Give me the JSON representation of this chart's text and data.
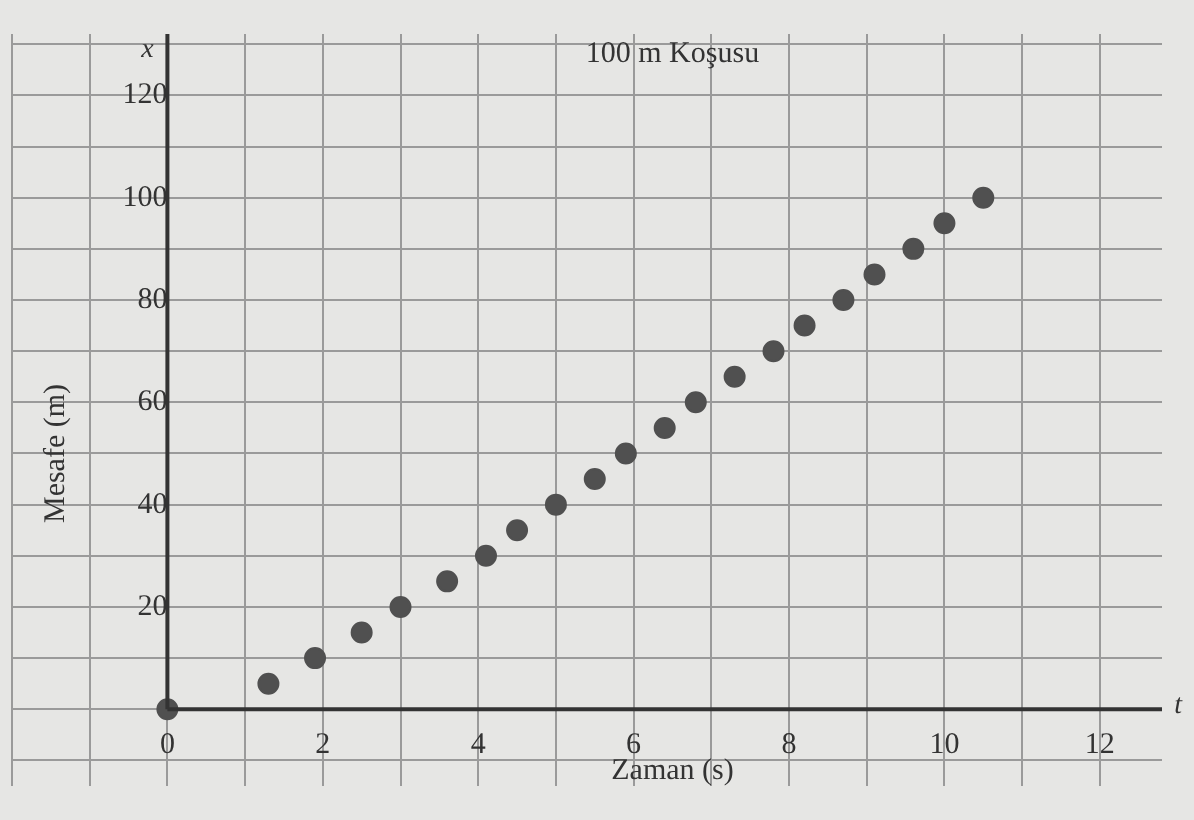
{
  "chart_data": {
    "type": "scatter",
    "title": "100 m Koşusu",
    "xlabel": "Zaman (s)",
    "ylabel": "Mesafe (m)",
    "annotations": [
      "x",
      "t"
    ],
    "x": [
      0,
      1.3,
      1.9,
      2.5,
      3.0,
      3.6,
      4.1,
      4.5,
      5.0,
      5.5,
      5.9,
      6.4,
      6.8,
      7.3,
      7.8,
      8.2,
      8.7,
      9.1,
      9.6,
      10.0,
      10.5
    ],
    "series": [
      {
        "color": "#505050",
        "values": [
          0,
          5,
          10,
          15,
          20,
          25,
          30,
          35,
          40,
          45,
          50,
          55,
          60,
          65,
          70,
          75,
          80,
          85,
          90,
          95,
          100
        ]
      }
    ],
    "xlim": [
      -2,
      12.8
    ],
    "ylim": [
      -15,
      132
    ],
    "xticks": [
      {
        "value": -2,
        "label": null
      },
      {
        "value": -1,
        "label": null
      },
      {
        "value": 0,
        "label": "0"
      },
      {
        "value": 1,
        "label": null
      },
      2,
      {
        "value": 3,
        "label": null
      },
      4,
      {
        "value": 5,
        "label": null
      },
      6,
      {
        "value": 7,
        "label": null
      },
      8,
      {
        "value": 9,
        "label": null
      },
      10,
      {
        "value": 11,
        "label": null
      },
      12
    ],
    "yticks": [
      {
        "value": -10,
        "label": null
      },
      {
        "value": 0,
        "label": null
      },
      {
        "value": 10,
        "label": null
      },
      20,
      {
        "value": 30,
        "label": null
      },
      40,
      {
        "value": 50,
        "label": null
      },
      60,
      {
        "value": 70,
        "label": null
      },
      80,
      {
        "value": 90,
        "label": null
      },
      100,
      {
        "value": 110,
        "label": null
      },
      120,
      {
        "value": 130,
        "label": null
      }
    ],
    "grid": true,
    "marker": "circle",
    "legend": false
  }
}
